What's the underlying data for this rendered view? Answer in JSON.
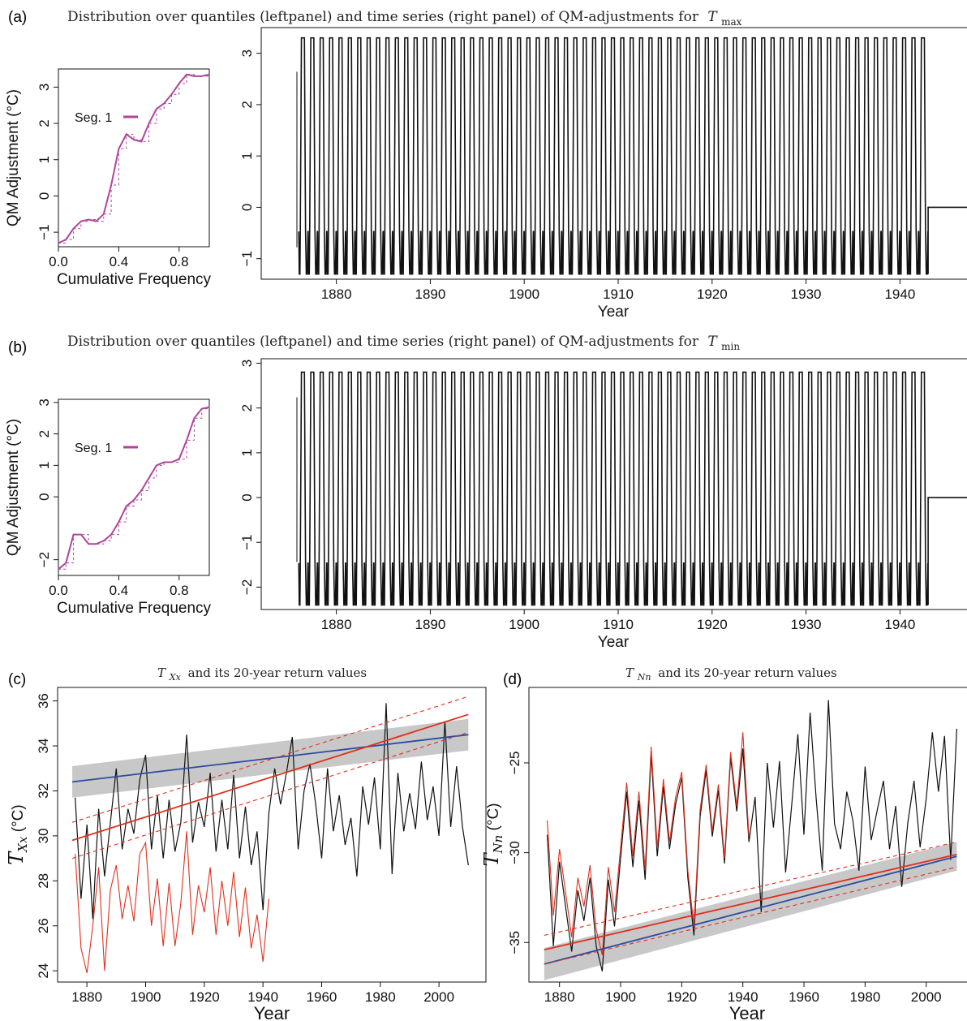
{
  "panels": {
    "a": {
      "label": "(a)",
      "title_text": "Distribution over quantiles (leftpanel) and time series (right panel) of QM-adjustments for",
      "title_var": "T",
      "title_sub": "max"
    },
    "b": {
      "label": "(b)",
      "title_text": "Distribution over quantiles (leftpanel) and time series (right panel) of QM-adjustments for",
      "title_var": "T",
      "title_sub": "min"
    },
    "c": {
      "label": "(c)",
      "title_var": "T",
      "title_sub": "Xx",
      "title_text": "and its 20-year return values"
    },
    "d": {
      "label": "(d)",
      "title_var": "T",
      "title_sub": "Nn",
      "title_text": "and its 20-year return values"
    }
  },
  "colors": {
    "magenta": "#b0449a",
    "red": "#e0301e",
    "blue": "#2b4ba0",
    "band": "#c8c8c8",
    "line": "#111111"
  },
  "chart_data": [
    {
      "id": "a-left",
      "type": "line",
      "xlabel": "Cumulative Frequency",
      "ylabel": "QM Adjustment (°C)",
      "xlim": [
        0,
        1
      ],
      "ylim": [
        -1.4,
        3.5
      ],
      "xticks": [
        0.0,
        0.4,
        0.8
      ],
      "xtick_labels": [
        "0.0",
        "0.4",
        "0.8"
      ],
      "yticks": [
        -1,
        0,
        1,
        2,
        3
      ],
      "ytick_labels": [
        "−1",
        "0",
        "1",
        "2",
        "3"
      ],
      "legend": "Seg. 1",
      "legend_position": "top-left",
      "x": [
        0.0,
        0.05,
        0.1,
        0.15,
        0.2,
        0.25,
        0.3,
        0.35,
        0.4,
        0.45,
        0.5,
        0.55,
        0.6,
        0.65,
        0.7,
        0.75,
        0.8,
        0.85,
        0.9,
        0.95,
        1.0
      ],
      "y": [
        -1.3,
        -1.2,
        -0.9,
        -0.7,
        -0.65,
        -0.7,
        -0.5,
        0.3,
        1.3,
        1.7,
        1.55,
        1.5,
        2.0,
        2.4,
        2.55,
        2.8,
        3.1,
        3.35,
        3.3,
        3.3,
        3.35
      ]
    },
    {
      "id": "a-right",
      "type": "line",
      "xlabel": "Year",
      "xlim": [
        1872,
        1948
      ],
      "ylim": [
        -1.4,
        3.5
      ],
      "xticks": [
        1880,
        1890,
        1900,
        1910,
        1920,
        1930,
        1940
      ],
      "yticks": [
        -1,
        0,
        1,
        2,
        3
      ],
      "series_start": 1876,
      "series_end": 1943,
      "annual_cycle_min": -1.3,
      "annual_cycle_max": 3.3,
      "after_end_value": 0
    },
    {
      "id": "b-left",
      "type": "line",
      "xlabel": "Cumulative Frequency",
      "ylabel": "QM Adjustment (°C)",
      "xlim": [
        0,
        1
      ],
      "ylim": [
        -2.5,
        3.1
      ],
      "xticks": [
        0.0,
        0.4,
        0.8
      ],
      "xtick_labels": [
        "0.0",
        "0.4",
        "0.8"
      ],
      "yticks": [
        -2,
        0,
        1,
        2,
        3
      ],
      "ytick_labels": [
        "−2",
        "0",
        "1",
        "2",
        "3"
      ],
      "legend": "Seg. 1",
      "legend_position": "top-left",
      "x": [
        0.0,
        0.05,
        0.1,
        0.15,
        0.2,
        0.25,
        0.3,
        0.35,
        0.4,
        0.45,
        0.5,
        0.55,
        0.6,
        0.65,
        0.7,
        0.75,
        0.8,
        0.85,
        0.9,
        0.95,
        1.0
      ],
      "y": [
        -2.3,
        -2.1,
        -1.2,
        -1.2,
        -1.5,
        -1.5,
        -1.4,
        -1.2,
        -0.8,
        -0.3,
        -0.1,
        0.2,
        0.6,
        1.0,
        1.1,
        1.1,
        1.2,
        1.8,
        2.5,
        2.8,
        2.85
      ]
    },
    {
      "id": "b-right",
      "type": "line",
      "xlabel": "Year",
      "xlim": [
        1872,
        1948
      ],
      "ylim": [
        -2.5,
        3.1
      ],
      "xticks": [
        1880,
        1890,
        1900,
        1910,
        1920,
        1930,
        1940
      ],
      "yticks": [
        -2,
        -1,
        0,
        1,
        2,
        3
      ],
      "series_start": 1876,
      "series_end": 1943,
      "annual_cycle_min": -2.4,
      "annual_cycle_max": 2.8,
      "after_end_value": 0
    },
    {
      "id": "c",
      "type": "line",
      "xlabel": "Year",
      "ylabel": "T_Xx (°C)",
      "xlim": [
        1870,
        2016
      ],
      "ylim": [
        23.5,
        36.6
      ],
      "xticks": [
        1880,
        1900,
        1920,
        1940,
        1960,
        1980,
        2000
      ],
      "yticks": [
        24,
        26,
        28,
        30,
        32,
        34,
        36
      ],
      "series": [
        {
          "color": "black",
          "x": [
            1876,
            1878,
            1880,
            1882,
            1884,
            1886,
            1888,
            1890,
            1892,
            1894,
            1896,
            1898,
            1900,
            1902,
            1904,
            1906,
            1908,
            1910,
            1912,
            1914,
            1916,
            1918,
            1920,
            1922,
            1924,
            1926,
            1928,
            1930,
            1932,
            1934,
            1936,
            1938,
            1940,
            1942,
            1944,
            1946,
            1948,
            1950,
            1952,
            1954,
            1956,
            1958,
            1960,
            1962,
            1964,
            1966,
            1968,
            1970,
            1972,
            1974,
            1976,
            1978,
            1980,
            1982,
            1984,
            1986,
            1988,
            1990,
            1992,
            1994,
            1996,
            1998,
            2000,
            2002,
            2004,
            2006,
            2008,
            2010
          ],
          "y": [
            31.7,
            27.2,
            30.5,
            26.3,
            31.2,
            28.2,
            30.6,
            33.0,
            29.4,
            31.2,
            30.1,
            32.5,
            33.6,
            29.4,
            31.8,
            29.0,
            31.6,
            29.3,
            30.6,
            34.5,
            29.7,
            31.5,
            30.4,
            32.8,
            29.3,
            31.6,
            29.4,
            32.7,
            29.0,
            31.3,
            28.7,
            30.2,
            26.7,
            31.0,
            33.0,
            31.4,
            32.8,
            34.4,
            29.4,
            32.0,
            33.2,
            31.4,
            29.0,
            33.0,
            30.2,
            31.8,
            29.6,
            30.8,
            28.2,
            32.2,
            30.5,
            32.6,
            29.4,
            35.9,
            28.3,
            32.8,
            30.2,
            31.9,
            30.3,
            33.3,
            30.7,
            32.2,
            30.0,
            35.1,
            30.4,
            33.1,
            30.4,
            28.7
          ]
        },
        {
          "color": "red",
          "x": [
            1876,
            1878,
            1880,
            1882,
            1884,
            1886,
            1888,
            1890,
            1892,
            1894,
            1896,
            1898,
            1900,
            1902,
            1904,
            1906,
            1908,
            1910,
            1912,
            1914,
            1916,
            1918,
            1920,
            1922,
            1924,
            1926,
            1928,
            1930,
            1932,
            1934,
            1936,
            1938,
            1940,
            1942
          ],
          "y": [
            29.2,
            25.0,
            23.9,
            26.0,
            28.6,
            24.0,
            27.6,
            28.7,
            26.3,
            27.8,
            26.2,
            29.2,
            29.7,
            26.0,
            28.1,
            25.1,
            27.9,
            25.1,
            27.0,
            30.2,
            25.6,
            27.8,
            26.6,
            28.6,
            25.6,
            28.0,
            26.0,
            28.4,
            25.5,
            27.7,
            25.0,
            26.5,
            24.4,
            27.2
          ]
        }
      ],
      "trend_lines": [
        {
          "color": "blue",
          "x": [
            1875,
            2010
          ],
          "y": [
            32.4,
            34.5
          ],
          "band": [
            [
              31.7,
              33.1
            ],
            [
              33.8,
              35.2
            ]
          ]
        },
        {
          "color": "red",
          "x": [
            1875,
            2010
          ],
          "y": [
            29.8,
            35.4
          ],
          "dashed_upper": [
            30.6,
            36.2
          ],
          "dashed_lower": [
            29.0,
            34.6
          ]
        }
      ]
    },
    {
      "id": "d",
      "type": "line",
      "xlabel": "Year",
      "ylabel": "T_Nn (°C)",
      "xlim": [
        1870,
        2016
      ],
      "ylim": [
        -37.2,
        -20.8
      ],
      "xticks": [
        1880,
        1900,
        1920,
        1940,
        1960,
        1980,
        2000
      ],
      "yticks": [
        -35,
        -30,
        -25
      ],
      "ytick_labels": [
        "−35",
        "−30",
        "−25"
      ],
      "series": [
        {
          "color": "black",
          "x": [
            1876,
            1878,
            1880,
            1882,
            1884,
            1886,
            1888,
            1890,
            1892,
            1894,
            1896,
            1898,
            1900,
            1902,
            1904,
            1906,
            1908,
            1910,
            1912,
            1914,
            1916,
            1918,
            1920,
            1922,
            1924,
            1926,
            1928,
            1930,
            1932,
            1934,
            1936,
            1938,
            1940,
            1942,
            1944,
            1946,
            1948,
            1950,
            1952,
            1954,
            1956,
            1958,
            1960,
            1962,
            1964,
            1966,
            1968,
            1970,
            1972,
            1974,
            1976,
            1978,
            1980,
            1982,
            1984,
            1986,
            1988,
            1990,
            1992,
            1994,
            1996,
            1998,
            2000,
            2002,
            2004,
            2006,
            2008,
            2010
          ],
          "y": [
            -29.0,
            -35.2,
            -30.5,
            -33.0,
            -35.5,
            -32.1,
            -33.8,
            -31.4,
            -35.2,
            -36.6,
            -31.5,
            -34.1,
            -30.3,
            -26.6,
            -30.8,
            -27.1,
            -31.5,
            -24.5,
            -30.2,
            -26.3,
            -29.8,
            -27.3,
            -25.8,
            -31.4,
            -34.6,
            -28.0,
            -25.4,
            -29.1,
            -26.5,
            -30.6,
            -24.7,
            -27.7,
            -24.2,
            -29.4,
            -26.9,
            -33.3,
            -25.0,
            -28.6,
            -24.9,
            -31.1,
            -27.3,
            -23.4,
            -29.0,
            -22.2,
            -27.0,
            -31.0,
            -21.5,
            -28.4,
            -29.8,
            -26.6,
            -28.2,
            -31.0,
            -25.2,
            -29.3,
            -27.6,
            -26.0,
            -29.8,
            -27.4,
            -31.9,
            -28.3,
            -26.0,
            -29.7,
            -27.0,
            -23.3,
            -26.6,
            -23.5,
            -30.4,
            -23.1
          ]
        },
        {
          "color": "red",
          "x": [
            1876,
            1878,
            1880,
            1882,
            1884,
            1886,
            1888,
            1890,
            1892,
            1894,
            1896,
            1898,
            1900,
            1902,
            1904,
            1906,
            1908,
            1910,
            1912,
            1914,
            1916,
            1918,
            1920,
            1922,
            1924,
            1926,
            1928,
            1930,
            1932,
            1934,
            1936,
            1938,
            1940,
            1942
          ],
          "y": [
            -28.2,
            -33.5,
            -29.8,
            -32.2,
            -34.7,
            -31.4,
            -33.0,
            -30.7,
            -34.3,
            -35.7,
            -30.8,
            -33.3,
            -29.7,
            -26.1,
            -30.2,
            -26.6,
            -30.9,
            -24.1,
            -29.7,
            -25.9,
            -29.4,
            -26.9,
            -25.5,
            -31.0,
            -34.1,
            -27.6,
            -25.1,
            -28.8,
            -26.2,
            -30.3,
            -24.4,
            -27.4,
            -23.3,
            -29.1
          ]
        }
      ],
      "trend_lines": [
        {
          "color": "blue",
          "x": [
            1875,
            2010
          ],
          "y": [
            -36.2,
            -30.2
          ],
          "band": [
            [
              -37.1,
              -35.3
            ],
            [
              -31.0,
              -29.4
            ]
          ]
        },
        {
          "color": "red",
          "x": [
            1875,
            2010
          ],
          "y": [
            -35.4,
            -30.1
          ],
          "dashed_upper": [
            -34.6,
            -29.4
          ],
          "dashed_lower": [
            -36.2,
            -30.8
          ]
        }
      ]
    }
  ]
}
